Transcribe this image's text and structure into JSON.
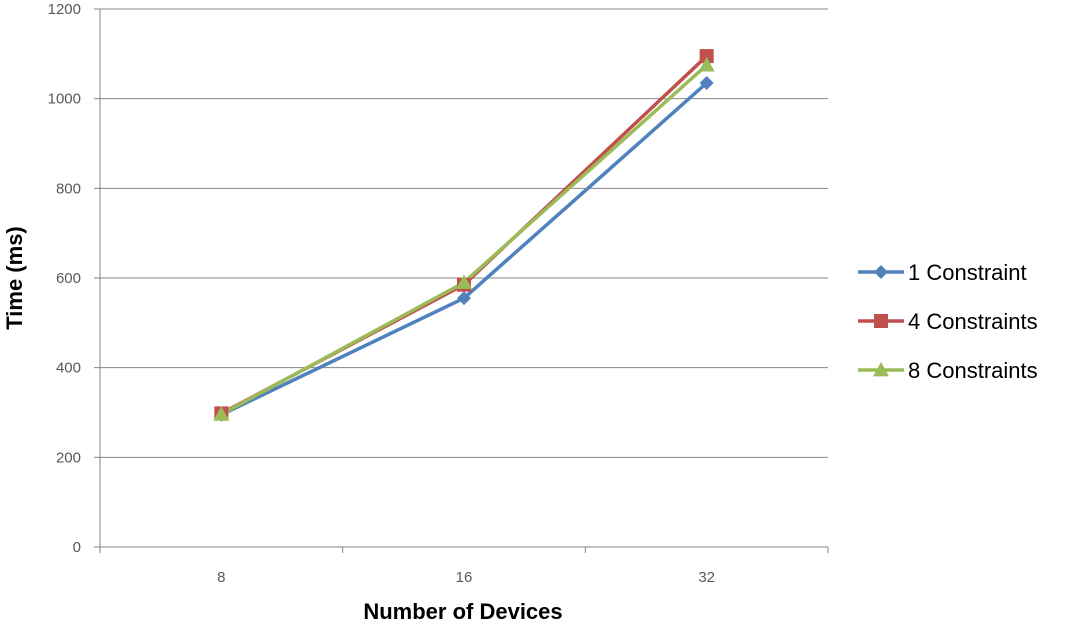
{
  "chart_data": {
    "type": "line",
    "title": "",
    "xlabel": "Number of Devices",
    "ylabel": "Time (ms)",
    "categories": [
      "8",
      "16",
      "32"
    ],
    "ylim": [
      0,
      1200
    ],
    "yticks": [
      0,
      200,
      400,
      600,
      800,
      1000,
      1200
    ],
    "grid": "horizontal",
    "legend_position": "right",
    "series": [
      {
        "name": "1 Constraint",
        "values": [
          295,
          555,
          1035
        ],
        "color": "#4F81BD",
        "marker": "diamond"
      },
      {
        "name": "4 Constraints",
        "values": [
          298,
          585,
          1095
        ],
        "color": "#C0504D",
        "marker": "square"
      },
      {
        "name": "8 Constraints",
        "values": [
          296,
          590,
          1075
        ],
        "color": "#9BBB59",
        "marker": "triangle"
      }
    ]
  }
}
